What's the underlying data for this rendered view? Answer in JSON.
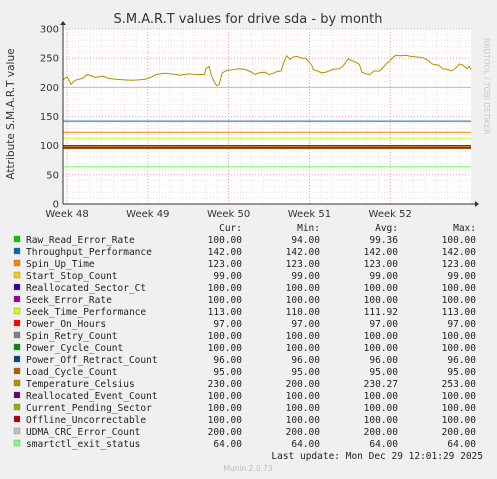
{
  "chart_data": {
    "type": "line",
    "title": "S.M.A.R.T values for drive sda - by month",
    "ylabel": "Attribute S.M.A.R.T value",
    "side_label": "RRDTOOL / TOBI OETIKER",
    "ylim": [
      0,
      300
    ],
    "yticks": [
      0,
      50,
      100,
      150,
      200,
      250,
      300
    ],
    "xticks": [
      {
        "label": "Week 48",
        "x": 48
      },
      {
        "label": "Week 49",
        "x": 49
      },
      {
        "label": "Week 50",
        "x": 50
      },
      {
        "label": "Week 51",
        "x": 51
      },
      {
        "label": "Week 52",
        "x": 52
      }
    ],
    "xlim": [
      47.95,
      53.0
    ],
    "legend_headers": {
      "cur": "Cur:",
      "min": "Min:",
      "avg": "Avg:",
      "max": "Max:"
    },
    "series": [
      {
        "name": "Raw_Read_Error_Rate",
        "color": "#00cc00",
        "cur": "100.00",
        "min": "94.00",
        "avg": "99.36",
        "max": "100.00",
        "value": 100
      },
      {
        "name": "Throughput_Performance",
        "color": "#0066b3",
        "cur": "142.00",
        "min": "142.00",
        "avg": "142.00",
        "max": "142.00",
        "value": 142
      },
      {
        "name": "Spin_Up_Time",
        "color": "#ff8000",
        "cur": "123.00",
        "min": "123.00",
        "avg": "123.00",
        "max": "123.00",
        "value": 123
      },
      {
        "name": "Start_Stop_Count",
        "color": "#ffcc00",
        "cur": "99.00",
        "min": "99.00",
        "avg": "99.00",
        "max": "99.00",
        "value": 99
      },
      {
        "name": "Reallocated_Sector_Ct",
        "color": "#330099",
        "cur": "100.00",
        "min": "100.00",
        "avg": "100.00",
        "max": "100.00",
        "value": 100
      },
      {
        "name": "Seek_Error_Rate",
        "color": "#990099",
        "cur": "100.00",
        "min": "100.00",
        "avg": "100.00",
        "max": "100.00",
        "value": 100
      },
      {
        "name": "Seek_Time_Performance",
        "color": "#ccff00",
        "cur": "113.00",
        "min": "110.00",
        "avg": "111.92",
        "max": "113.00",
        "value": 113
      },
      {
        "name": "Power_On_Hours",
        "color": "#ff0000",
        "cur": "97.00",
        "min": "97.00",
        "avg": "97.00",
        "max": "97.00",
        "value": 97
      },
      {
        "name": "Spin_Retry_Count",
        "color": "#808080",
        "cur": "100.00",
        "min": "100.00",
        "avg": "100.00",
        "max": "100.00",
        "value": 100
      },
      {
        "name": "Power_Cycle_Count",
        "color": "#008f00",
        "cur": "100.00",
        "min": "100.00",
        "avg": "100.00",
        "max": "100.00",
        "value": 100
      },
      {
        "name": "Power_Off_Retract_Count",
        "color": "#00487d",
        "cur": "96.00",
        "min": "96.00",
        "avg": "96.00",
        "max": "96.00",
        "value": 96
      },
      {
        "name": "Load_Cycle_Count",
        "color": "#b35a00",
        "cur": "95.00",
        "min": "95.00",
        "avg": "95.00",
        "max": "95.00",
        "value": 95
      },
      {
        "name": "Temperature_Celsius",
        "color": "#b38f00",
        "cur": "230.00",
        "min": "200.00",
        "avg": "230.27",
        "max": "253.00",
        "value": 230
      },
      {
        "name": "Reallocated_Event_Count",
        "color": "#6b006b",
        "cur": "100.00",
        "min": "100.00",
        "avg": "100.00",
        "max": "100.00",
        "value": 100
      },
      {
        "name": "Current_Pending_Sector",
        "color": "#8fb300",
        "cur": "100.00",
        "min": "100.00",
        "avg": "100.00",
        "max": "100.00",
        "value": 100
      },
      {
        "name": "Offline_Uncorrectable",
        "color": "#b30000",
        "cur": "100.00",
        "min": "100.00",
        "avg": "100.00",
        "max": "100.00",
        "value": 100
      },
      {
        "name": "UDMA_CRC_Error_Count",
        "color": "#bebebe",
        "cur": "200.00",
        "min": "200.00",
        "avg": "200.00",
        "max": "200.00",
        "value": 200
      },
      {
        "name": "smartctl_exit_status",
        "color": "#80ff80",
        "cur": "64.00",
        "min": "64.00",
        "avg": "64.00",
        "max": "64.00",
        "value": 64
      }
    ],
    "temperature_trace": [
      [
        47.95,
        213
      ],
      [
        48.0,
        218
      ],
      [
        48.05,
        205
      ],
      [
        48.1,
        212
      ],
      [
        48.2,
        216
      ],
      [
        48.25,
        222
      ],
      [
        48.35,
        217
      ],
      [
        48.45,
        219
      ],
      [
        48.5,
        216
      ],
      [
        48.6,
        214
      ],
      [
        48.7,
        213
      ],
      [
        48.8,
        212
      ],
      [
        48.9,
        213
      ],
      [
        48.97,
        214
      ],
      [
        49.05,
        218
      ],
      [
        49.1,
        222
      ],
      [
        49.2,
        224
      ],
      [
        49.3,
        223
      ],
      [
        49.4,
        221
      ],
      [
        49.5,
        223
      ],
      [
        49.6,
        222
      ],
      [
        49.7,
        222
      ],
      [
        49.72,
        232
      ],
      [
        49.76,
        236
      ],
      [
        49.78,
        223
      ],
      [
        49.82,
        210
      ],
      [
        49.85,
        203
      ],
      [
        49.88,
        204
      ],
      [
        49.92,
        225
      ],
      [
        49.98,
        229
      ],
      [
        50.05,
        230
      ],
      [
        50.12,
        232
      ],
      [
        50.2,
        231
      ],
      [
        50.27,
        227
      ],
      [
        50.33,
        222
      ],
      [
        50.38,
        225
      ],
      [
        50.45,
        226
      ],
      [
        50.5,
        222
      ],
      [
        50.55,
        224
      ],
      [
        50.6,
        227
      ],
      [
        50.65,
        228
      ],
      [
        50.69,
        246
      ],
      [
        50.72,
        254
      ],
      [
        50.76,
        248
      ],
      [
        50.8,
        252
      ],
      [
        50.85,
        253
      ],
      [
        50.9,
        250
      ],
      [
        50.95,
        250
      ],
      [
        51.0,
        243
      ],
      [
        51.03,
        238
      ],
      [
        51.05,
        230
      ],
      [
        51.1,
        228
      ],
      [
        51.15,
        225
      ],
      [
        51.2,
        226
      ],
      [
        51.3,
        231
      ],
      [
        51.37,
        232
      ],
      [
        51.42,
        237
      ],
      [
        51.48,
        249
      ],
      [
        51.52,
        246
      ],
      [
        51.58,
        243
      ],
      [
        51.62,
        239
      ],
      [
        51.65,
        226
      ],
      [
        51.7,
        223
      ],
      [
        51.75,
        222
      ],
      [
        51.8,
        228
      ],
      [
        51.87,
        228
      ],
      [
        51.95,
        240
      ],
      [
        52.0,
        246
      ],
      [
        52.03,
        251
      ],
      [
        52.07,
        255
      ],
      [
        52.12,
        254
      ],
      [
        52.2,
        255
      ],
      [
        52.25,
        253
      ],
      [
        52.33,
        252
      ],
      [
        52.4,
        251
      ],
      [
        52.45,
        248
      ],
      [
        52.52,
        240
      ],
      [
        52.6,
        238
      ],
      [
        52.65,
        232
      ],
      [
        52.7,
        231
      ],
      [
        52.76,
        228
      ],
      [
        52.82,
        234
      ],
      [
        52.85,
        240
      ],
      [
        52.9,
        238
      ],
      [
        52.95,
        232
      ],
      [
        52.98,
        236
      ],
      [
        53.0,
        230
      ]
    ],
    "last_update": "Last update: Mon Dec 29 12:01:29 2025",
    "footer": "Munin 2.0.73"
  }
}
